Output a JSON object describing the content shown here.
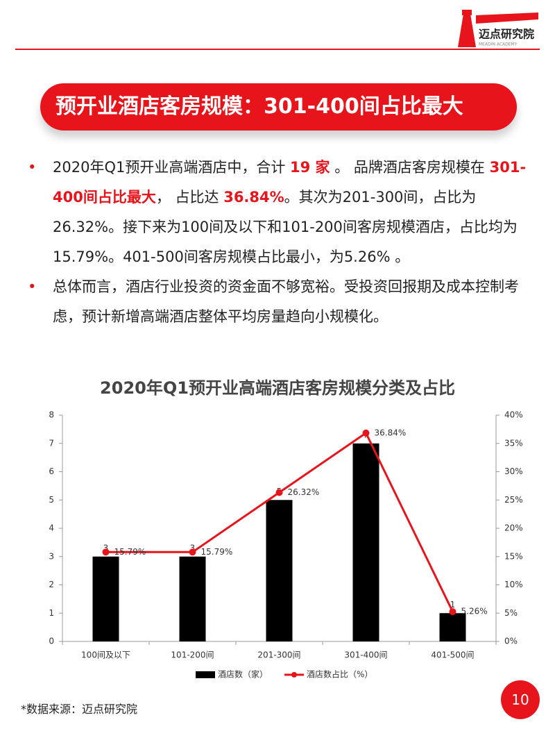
{
  "header": {
    "logo": "迈点研究院",
    "logo_sub": "MEADIN ACADEMY"
  },
  "banner": "预开业酒店客房规模：301-400间占比最大",
  "bullets": [
    [
      {
        "text": "2020年Q1预开业高端酒店中，合计 ",
        "highlight": false
      },
      {
        "text": "19 家",
        "highlight": true
      },
      {
        "text": " 。 品牌酒店客房规模在 ",
        "highlight": false
      },
      {
        "text": "301-400间占比最大",
        "highlight": true
      },
      {
        "text": "， 占比达 ",
        "highlight": false
      },
      {
        "text": "36.84%",
        "highlight": true
      },
      {
        "text": "。其次为201-300间，占比为26.32%。接下来为100间及以下和101-200间客房规模酒店，占比均为15.79%。401-500间客房规模占比最小，为5.26% 。",
        "highlight": false
      }
    ],
    [
      {
        "text": "总体而言，酒店行业投资的资金面不够宽裕。受投资回报期及成本控制考虑，预计新增高端酒店整体平均房量趋向小规模化。",
        "highlight": false
      }
    ]
  ],
  "chart_data": {
    "type": "bar-line",
    "title": "2020年Q1预开业高端酒店客房规模分类及占比",
    "categories": [
      "100间及以下",
      "101-200间",
      "201-300间",
      "301-400间",
      "401-500间"
    ],
    "series": [
      {
        "name": "酒店数（家）",
        "type": "bar",
        "color": "#000000",
        "values": [
          3,
          3,
          5,
          7,
          1
        ]
      },
      {
        "name": "酒店数占比（%）",
        "type": "line",
        "color": "#e8141b",
        "axis": "y2",
        "values": [
          15.79,
          15.79,
          26.32,
          36.84,
          5.26
        ],
        "value_labels": [
          "15.79%",
          "15.79%",
          "26.32%",
          "36.84%",
          "5.26%"
        ]
      }
    ],
    "ylim": [
      0,
      8
    ],
    "yticks": [
      0,
      1,
      2,
      3,
      4,
      5,
      6,
      7,
      8
    ],
    "y2lim": [
      0,
      40
    ],
    "y2ticks": [
      {
        "value": 0,
        "label": "0%"
      },
      {
        "value": 5,
        "label": "5%"
      },
      {
        "value": 10,
        "label": "10%"
      },
      {
        "value": 15,
        "label": "15%"
      },
      {
        "value": 20,
        "label": "20%"
      },
      {
        "value": 25,
        "label": "25%"
      },
      {
        "value": 30,
        "label": "30%"
      },
      {
        "value": 35,
        "label": "35%"
      },
      {
        "value": 40,
        "label": "40%"
      }
    ],
    "legend": "bottom"
  },
  "source": "*数据来源：迈点研究院",
  "page_number": 10
}
